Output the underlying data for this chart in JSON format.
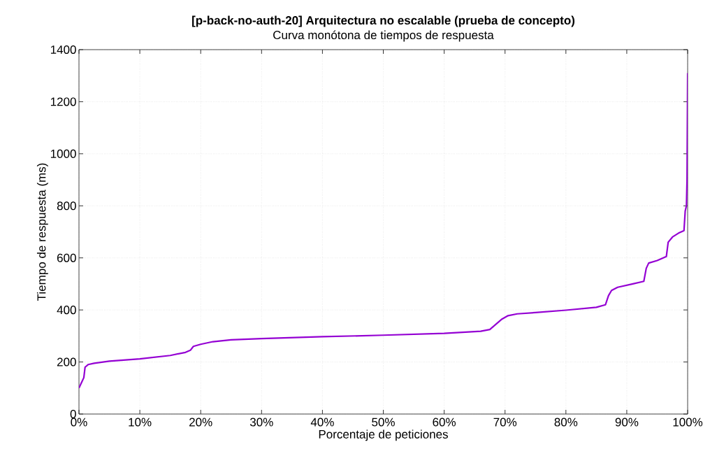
{
  "chart_data": {
    "type": "line",
    "title": "[p-back-no-auth-20] Arquitectura no escalable (prueba de concepto)",
    "subtitle": "Curva monótona de tiempos de respuesta",
    "xlabel": "Porcentaje de peticiones",
    "ylabel": "Tiempo de respuesta (ms)",
    "series": [
      {
        "color": "#9400d3",
        "x": [
          0,
          0.5,
          0.8,
          1.0,
          1.5,
          2.5,
          5,
          10,
          15,
          17.5,
          18.3,
          18.8,
          20,
          22,
          25,
          30,
          40,
          50,
          60,
          66,
          67.5,
          68.5,
          69.5,
          70.5,
          72,
          75,
          80,
          85,
          86.5,
          87,
          87.5,
          88.5,
          91,
          92.8,
          93.2,
          93.6,
          95,
          96.5,
          96.8,
          97.5,
          98.5,
          99.4,
          99.6,
          99.8,
          99.9,
          100
        ],
        "values": [
          100,
          125,
          140,
          180,
          190,
          195,
          203,
          212,
          225,
          237,
          245,
          260,
          268,
          278,
          285,
          290,
          297,
          303,
          310,
          318,
          325,
          345,
          365,
          378,
          385,
          390,
          399,
          410,
          420,
          455,
          475,
          487,
          500,
          510,
          560,
          580,
          590,
          605,
          660,
          680,
          695,
          705,
          780,
          800,
          900,
          1310
        ]
      }
    ],
    "xlim": [
      0,
      100
    ],
    "ylim": [
      0,
      1400
    ],
    "xticks": [
      {
        "value": 0,
        "label": "0%"
      },
      {
        "value": 10,
        "label": "10%"
      },
      {
        "value": 20,
        "label": "20%"
      },
      {
        "value": 30,
        "label": "30%"
      },
      {
        "value": 40,
        "label": "40%"
      },
      {
        "value": 50,
        "label": "50%"
      },
      {
        "value": 60,
        "label": "60%"
      },
      {
        "value": 70,
        "label": "70%"
      },
      {
        "value": 80,
        "label": "80%"
      },
      {
        "value": 90,
        "label": "90%"
      },
      {
        "value": 100,
        "label": "100%"
      }
    ],
    "yticks": [
      0,
      200,
      400,
      600,
      800,
      1000,
      1200,
      1400
    ],
    "grid": true,
    "line_style": "solid"
  }
}
